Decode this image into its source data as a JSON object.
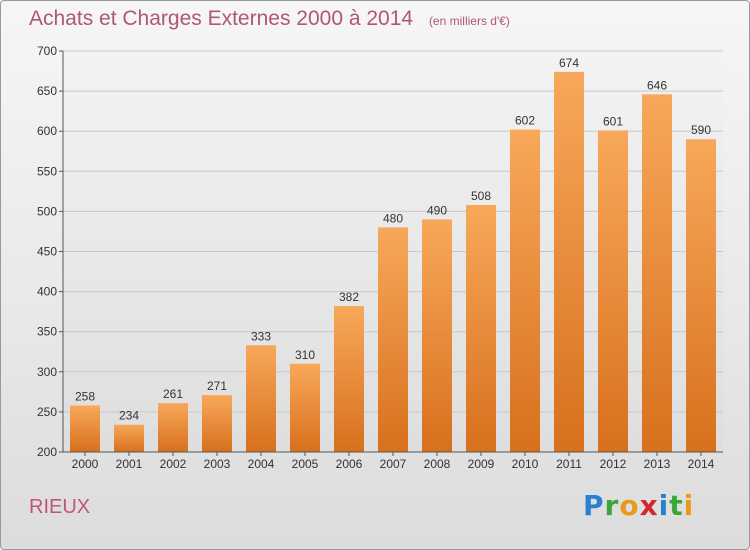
{
  "title": "Achats et Charges Externes 2000 à 2014",
  "unit": "(en milliers d'€)",
  "place": "RIEUX",
  "logo": {
    "text": "Proxiti",
    "letters": [
      {
        "ch": "P",
        "color": "#2a7fcf"
      },
      {
        "ch": "r",
        "color": "#3aa63a"
      },
      {
        "ch": "o",
        "color": "#e89a1a"
      },
      {
        "ch": "x",
        "color": "#d2282e"
      },
      {
        "ch": "i",
        "color": "#2a7fcf"
      },
      {
        "ch": "t",
        "color": "#3aa63a"
      },
      {
        "ch": "i",
        "color": "#e89a1a"
      }
    ]
  },
  "colors": {
    "bar_top": "#f7a85a",
    "bar_bottom": "#d8701c",
    "title": "#b0567a"
  },
  "chart_data": {
    "type": "bar",
    "categories": [
      "2000",
      "2001",
      "2002",
      "2003",
      "2004",
      "2005",
      "2006",
      "2007",
      "2008",
      "2009",
      "2010",
      "2011",
      "2012",
      "2013",
      "2014"
    ],
    "values": [
      258,
      234,
      261,
      271,
      333,
      310,
      382,
      480,
      490,
      508,
      602,
      674,
      601,
      646,
      590
    ],
    "ylim": [
      200,
      700
    ],
    "yticks": [
      200,
      250,
      300,
      350,
      400,
      450,
      500,
      550,
      600,
      650,
      700
    ],
    "grid": true,
    "data_labels": true
  }
}
